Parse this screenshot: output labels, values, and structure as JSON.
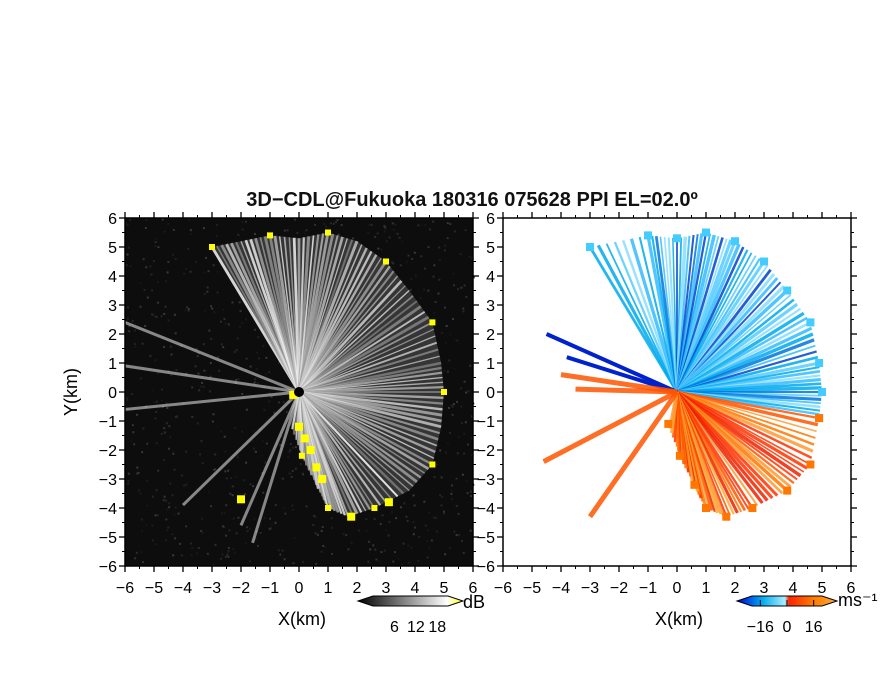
{
  "chart_data": {
    "title": "3D−CDL@Fukuoka 180316 075628 PPI EL=02.0º",
    "panels": [
      {
        "type": "heatmap",
        "quantity": "reflectivity",
        "xlabel": "X(km)",
        "ylabel": "Y(km)",
        "xlim": [
          -6,
          6
        ],
        "ylim": [
          -6,
          6
        ],
        "colorbar": {
          "ticks": [
            "6",
            "12",
            "18"
          ],
          "unit": "dB",
          "range": [
            0,
            21
          ],
          "colors": [
            "#000000",
            "#ffffff",
            "#ffff00"
          ]
        },
        "echo_boundary_km": [
          [
            -3.0,
            5.0
          ],
          [
            -2.0,
            5.2
          ],
          [
            -1.0,
            5.4
          ],
          [
            0,
            5.3
          ],
          [
            1.0,
            5.5
          ],
          [
            2.0,
            5.2
          ],
          [
            3.0,
            4.5
          ],
          [
            3.8,
            3.5
          ],
          [
            4.6,
            2.4
          ],
          [
            4.9,
            1.0
          ],
          [
            5.0,
            0
          ],
          [
            4.9,
            -1.2
          ],
          [
            4.6,
            -2.5
          ],
          [
            3.8,
            -3.4
          ],
          [
            2.6,
            -4.0
          ],
          [
            1.7,
            -4.3
          ],
          [
            1.0,
            -4.0
          ],
          [
            0.6,
            -3.2
          ],
          [
            0.1,
            -2.2
          ],
          [
            -0.3,
            -1.1
          ]
        ]
      },
      {
        "type": "heatmap",
        "quantity": "radial velocity",
        "xlabel": "X(km)",
        "ylabel": "",
        "xlim": [
          -6,
          6
        ],
        "ylim": [
          -6,
          6
        ],
        "colorbar": {
          "ticks": [
            "−16",
            "0",
            "16"
          ],
          "unit": "ms⁻¹",
          "range": [
            -21,
            21
          ],
          "colors": [
            "#0000dd",
            "#00aaee",
            "#aaeeff",
            "#ff2200",
            "#ff7700",
            "#ffaa33"
          ]
        },
        "approaching_boundary_km": [
          [
            -3.0,
            5.0
          ],
          [
            -1.0,
            5.4
          ],
          [
            0,
            5.3
          ],
          [
            1.0,
            5.5
          ],
          [
            2.0,
            5.2
          ],
          [
            3.0,
            4.5
          ],
          [
            3.8,
            3.5
          ],
          [
            4.6,
            2.4
          ],
          [
            4.9,
            1.0
          ],
          [
            5.0,
            0
          ],
          [
            4.9,
            -0.9
          ]
        ],
        "receding_boundary_km": [
          [
            4.9,
            -0.9
          ],
          [
            4.6,
            -2.5
          ],
          [
            3.8,
            -3.4
          ],
          [
            2.6,
            -4.0
          ],
          [
            1.7,
            -4.3
          ],
          [
            1.0,
            -4.0
          ],
          [
            0.6,
            -3.2
          ],
          [
            0.1,
            -2.2
          ],
          [
            -0.3,
            -1.1
          ]
        ]
      }
    ],
    "axis_ticks": [
      "−6",
      "−5",
      "−4",
      "−3",
      "−2",
      "−1",
      "0",
      "1",
      "2",
      "3",
      "4",
      "5",
      "6"
    ]
  }
}
